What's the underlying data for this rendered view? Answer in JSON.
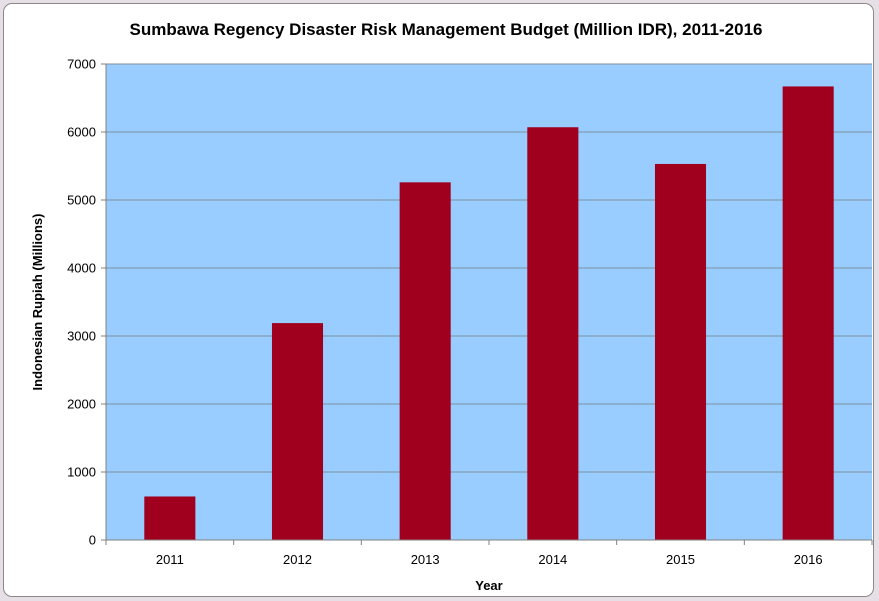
{
  "chart_data": {
    "type": "bar",
    "title": "Sumbawa Regency Disaster Risk Management Budget (Million IDR), 2011-2016",
    "xlabel": "Year",
    "ylabel": "Indonesian Rupiah (Millions)",
    "categories": [
      "2011",
      "2012",
      "2013",
      "2014",
      "2015",
      "2016"
    ],
    "values": [
      640,
      3190,
      5260,
      6070,
      5530,
      6670
    ],
    "ylim": [
      0,
      7000
    ],
    "yticks": [
      "0",
      "1000",
      "2000",
      "3000",
      "4000",
      "5000",
      "6000",
      "7000"
    ],
    "grid": true,
    "legend": "none",
    "colors": {
      "bar": "#a0001e",
      "plot_background": "#99ccff",
      "gridline": "#7f8f9f",
      "axis": "#808080"
    }
  }
}
